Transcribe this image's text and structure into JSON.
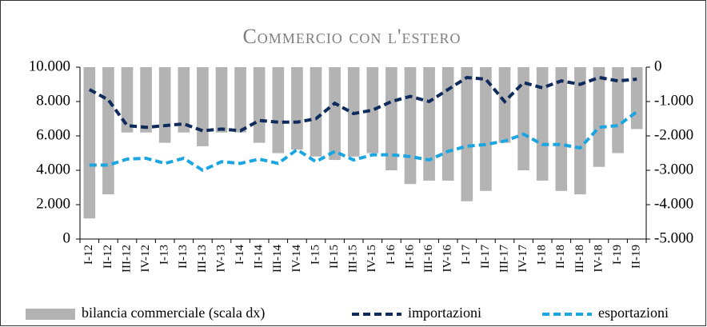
{
  "chart_data": {
    "type": "bar",
    "title": "Commercio con l'estero",
    "categories": [
      "I-12",
      "II-12",
      "III-12",
      "IV-12",
      "I-13",
      "II-13",
      "III-13",
      "IV-13",
      "I-14",
      "II-14",
      "III-14",
      "IV-14",
      "I-15",
      "II-15",
      "III-15",
      "IV-15",
      "I-16",
      "II-16",
      "III-16",
      "IV-16",
      "I-17",
      "II-17",
      "III-17",
      "IV-17",
      "I-18",
      "II-18",
      "III-18",
      "IV-18",
      "I-19",
      "II-19"
    ],
    "series": [
      {
        "name": "bilancia commerciale (scala dx)",
        "type": "bar",
        "axis": "y2",
        "color": "#b3b3b3",
        "values": [
          -4.4,
          -3.7,
          -1.9,
          -1.9,
          -2.2,
          -1.9,
          -2.3,
          -1.9,
          -1.9,
          -2.2,
          -2.5,
          -2.4,
          -2.6,
          -2.7,
          -2.6,
          -2.5,
          -3.0,
          -3.4,
          -3.3,
          -3.3,
          -3.9,
          -3.6,
          -2.2,
          -3.0,
          -3.3,
          -3.6,
          -3.7,
          -2.9,
          -2.5,
          -1.8
        ]
      },
      {
        "name": "importazioni",
        "type": "line",
        "color": "#0e2b5c",
        "values": [
          8.7,
          8.1,
          6.6,
          6.5,
          6.6,
          6.7,
          6.3,
          6.4,
          6.3,
          6.9,
          6.8,
          6.8,
          7.0,
          7.9,
          7.3,
          7.5,
          8.0,
          8.3,
          8.0,
          8.7,
          9.4,
          9.3,
          8.0,
          9.1,
          8.8,
          9.2,
          9.0,
          9.4,
          9.2,
          9.3
        ]
      },
      {
        "name": "esportazioni",
        "type": "line",
        "color": "#1ba6e2",
        "values": [
          4.3,
          4.3,
          4.65,
          4.7,
          4.4,
          4.7,
          4.0,
          4.5,
          4.4,
          4.65,
          4.4,
          5.2,
          4.5,
          5.1,
          4.6,
          4.9,
          4.9,
          4.8,
          4.6,
          5.1,
          5.4,
          5.5,
          5.7,
          6.1,
          5.5,
          5.5,
          5.3,
          6.5,
          6.6,
          7.4
        ]
      }
    ],
    "ylim": [
      0,
      10
    ],
    "yticks": [
      0,
      {
        "value": 2,
        "label": "2.000"
      },
      {
        "value": 4,
        "label": "4.000"
      },
      {
        "value": 6,
        "label": "6.000"
      },
      {
        "value": 8,
        "label": "8.000"
      },
      {
        "value": 10,
        "label": "10.000"
      }
    ],
    "y2lim": [
      -5,
      0
    ],
    "y2ticks": [
      0,
      {
        "value": -1,
        "label": "-1.000"
      },
      {
        "value": -2,
        "label": "-2.000"
      },
      {
        "value": -3,
        "label": "-3.000"
      },
      {
        "value": -4,
        "label": "-4.000"
      },
      {
        "value": -5,
        "label": "-5.000"
      }
    ],
    "legend": "bottom"
  }
}
